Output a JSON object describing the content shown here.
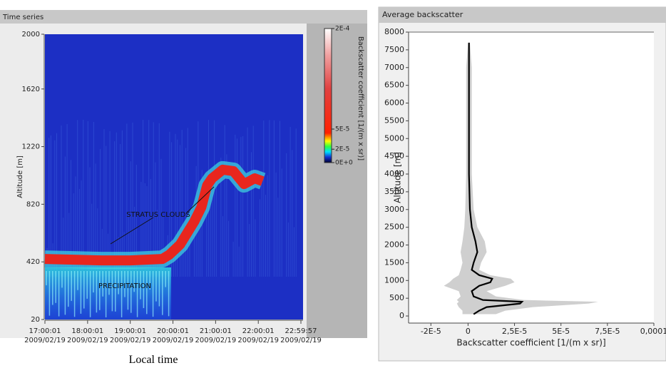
{
  "chart_data": [
    {
      "type": "heatmap",
      "panel_title": "Time series",
      "ylabel": "Altitude [m]",
      "xlabel": "Local time",
      "xlim": [
        0,
        359.93
      ],
      "xticks": [
        {
          "value": 0,
          "label": "17:00:01\n2009/02/19"
        },
        {
          "value": 60,
          "label": "18:00:01\n2009/02/19"
        },
        {
          "value": 120,
          "label": "19:00:01\n2009/02/19"
        },
        {
          "value": 180,
          "label": "20:00:01\n2009/02/19"
        },
        {
          "value": 240,
          "label": "21:00:01\n2009/02/19"
        },
        {
          "value": 300,
          "label": "22:00:01\n2009/02/19"
        },
        {
          "value": 359.93,
          "label": "22:59:57\n2009/02/19"
        }
      ],
      "ylim": [
        20,
        2000
      ],
      "yticks": [
        20,
        420,
        820,
        1220,
        1620,
        2000
      ],
      "colorbar_label": "Backscatter coefficient [1/(m x sr)]",
      "clim": [
        0,
        0.0002
      ],
      "cticks": [
        {
          "value": 0,
          "label": "0E+0"
        },
        {
          "value": 2e-05,
          "label": "2E-5"
        },
        {
          "value": 5e-05,
          "label": "5E-5"
        },
        {
          "value": 0.0002,
          "label": "2E-4"
        }
      ],
      "annotations": [
        "STRATUS CLOUDS",
        "PRECIPITATION"
      ],
      "series": [
        {
          "color": "#e8261e",
          "x": [
            0,
            40,
            80,
            120,
            165,
            175,
            190,
            200,
            210,
            220,
            228,
            235,
            250,
            265,
            280,
            295,
            306
          ],
          "values": [
            440,
            435,
            430,
            430,
            440,
            470,
            540,
            620,
            700,
            800,
            950,
            1000,
            1060,
            1050,
            960,
            1000,
            980
          ]
        }
      ]
    },
    {
      "type": "line",
      "panel_title": "Average backscatter",
      "ylabel": "Altitude [m]",
      "xlabel": "Backscatter coefficient [1/(m x sr)]",
      "xlim": [
        -3.2e-05,
        0.0001
      ],
      "xticks": [
        {
          "value": -2e-05,
          "label": "-2E-5"
        },
        0,
        {
          "value": 2.5e-05,
          "label": "2,5E-5"
        },
        {
          "value": 5e-05,
          "label": "5E-5"
        },
        {
          "value": 7.5e-05,
          "label": "7,5E-5"
        },
        {
          "value": 0.0001,
          "label": "0,0001"
        }
      ],
      "ylim": [
        -200,
        8000
      ],
      "yticks": [
        0,
        500,
        1000,
        1500,
        2000,
        2500,
        3000,
        3500,
        4000,
        4500,
        5000,
        5500,
        6000,
        6500,
        7000,
        7500,
        8000
      ],
      "y": [
        50,
        150,
        250,
        350,
        400,
        450,
        550,
        700,
        850,
        950,
        1050,
        1150,
        1300,
        1500,
        1800,
        2100,
        2500,
        3000,
        4000,
        5000,
        6000,
        7000,
        7700
      ],
      "series": [
        {
          "color": "#000000",
          "values": [
            3e-06,
            6e-06,
            1e-05,
            2.8e-05,
            2.9e-05,
            8e-06,
            3e-06,
            2e-06,
            6e-06,
            1.2e-05,
            1.3e-05,
            6e-06,
            2e-06,
            3e-06,
            5e-06,
            4e-06,
            2e-06,
            1e-06,
            5e-07,
            5e-07,
            5e-07,
            5e-07,
            5e-07
          ]
        }
      ],
      "band": {
        "color": "#cfcfcf",
        "low": [
          -3e-06,
          -3e-06,
          -5e-06,
          -6e-06,
          -5e-06,
          -6e-06,
          -4e-06,
          -5e-06,
          -1.3e-05,
          -1e-05,
          -8e-06,
          -5e-06,
          -4e-06,
          -3e-06,
          -4e-06,
          -3e-06,
          -2e-06,
          -1.5e-06,
          -1e-06,
          -1e-06,
          -1e-06,
          -1e-06,
          0
        ],
        "high": [
          1.5e-05,
          2e-05,
          3.5e-05,
          6.5e-05,
          7e-05,
          3e-05,
          1.5e-05,
          1e-05,
          2e-05,
          2.5e-05,
          2.3e-05,
          1.2e-05,
          6e-06,
          7e-06,
          1e-05,
          9e-06,
          5e-06,
          3e-06,
          2e-06,
          2e-06,
          2e-06,
          2e-06,
          1e-06
        ]
      }
    }
  ]
}
